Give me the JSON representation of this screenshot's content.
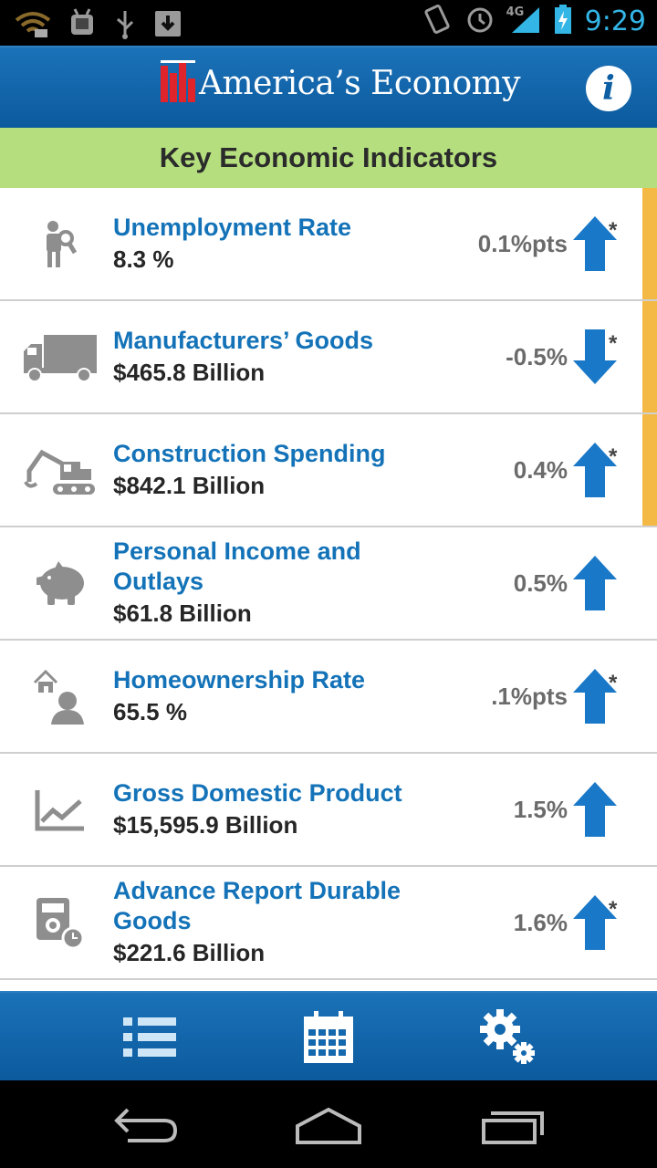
{
  "status_bar": {
    "time": "9:29",
    "network": "4G",
    "icons": [
      "wifi-icon",
      "android-debug-icon",
      "usb-icon",
      "download-icon",
      "screen-rotate-icon",
      "alarm-icon",
      "signal-icon",
      "battery-charging-icon"
    ]
  },
  "header": {
    "title": "America’s Economy",
    "info_label": "i"
  },
  "section_title": "Key Economic Indicators",
  "indicators": [
    {
      "name": "Unemployment Rate",
      "value": "8.3 %",
      "change": "0.1%pts",
      "direction": "up",
      "starred": true,
      "flagged": true,
      "icon": "person-search-icon"
    },
    {
      "name": "Manufacturers’ Goods",
      "value": "$465.8 Billion",
      "change": "-0.5%",
      "direction": "down",
      "starred": true,
      "flagged": true,
      "icon": "truck-icon"
    },
    {
      "name": "Construction Spending",
      "value": "$842.1 Billion",
      "change": "0.4%",
      "direction": "up",
      "starred": true,
      "flagged": true,
      "icon": "excavator-icon"
    },
    {
      "name": "Personal Income and Outlays",
      "value": "$61.8 Billion",
      "change": "0.5%",
      "direction": "up",
      "starred": false,
      "flagged": false,
      "icon": "piggy-bank-icon"
    },
    {
      "name": "Homeownership Rate",
      "value": "65.5 %",
      "change": ".1%pts",
      "direction": "up",
      "starred": true,
      "flagged": false,
      "icon": "house-person-icon"
    },
    {
      "name": "Gross Domestic Product",
      "value": "$15,595.9 Billion",
      "change": "1.5%",
      "direction": "up",
      "starred": false,
      "flagged": false,
      "icon": "line-chart-icon"
    },
    {
      "name": "Advance Report Durable Goods",
      "value": "$221.6 Billion",
      "change": "1.6%",
      "direction": "up",
      "starred": true,
      "flagged": false,
      "icon": "durable-goods-clock-icon"
    }
  ],
  "star_mark": "*",
  "tabs": [
    "list-icon",
    "calendar-icon",
    "settings-icon"
  ],
  "nav": [
    "back-icon",
    "home-icon",
    "recent-apps-icon"
  ],
  "colors": {
    "header_blue": "#1470b6",
    "section_green": "#b5df7e",
    "link_blue": "#1473b8",
    "arrow_blue": "#1a78c8",
    "flag_orange": "#f4b945"
  }
}
